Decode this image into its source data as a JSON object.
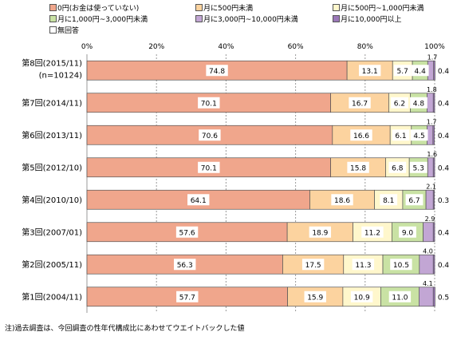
{
  "chart_data": {
    "type": "bar",
    "orientation": "horizontal",
    "stacked": true,
    "percent": true,
    "categories": [
      "第8回(2015/11)",
      "第7回(2014/11)",
      "第6回(2013/11)",
      "第5回(2012/10)",
      "第4回(2010/10)",
      "第3回(2007/01)",
      "第2回(2005/11)",
      "第1回(2004/11)"
    ],
    "category_sublabels": [
      "(n=10124)",
      "",
      "",
      "",
      "",
      "",
      "",
      ""
    ],
    "series": [
      {
        "name": "0円(お金は使っていない)",
        "color": "#f0a68c",
        "values": [
          74.8,
          70.1,
          70.6,
          70.1,
          64.1,
          57.6,
          56.3,
          57.7
        ]
      },
      {
        "name": "月に500円未満",
        "color": "#fcd39f",
        "values": [
          13.1,
          16.7,
          16.6,
          15.8,
          18.6,
          18.9,
          17.5,
          15.9
        ]
      },
      {
        "name": "月に500円~1,000円未満",
        "color": "#fff7cc",
        "values": [
          5.7,
          6.2,
          6.1,
          6.8,
          8.1,
          11.2,
          11.3,
          10.9
        ]
      },
      {
        "name": "月に1,000円~3,000円未満",
        "color": "#c9e2a4",
        "values": [
          4.4,
          4.8,
          4.5,
          5.3,
          6.7,
          9.0,
          10.5,
          11.0
        ]
      },
      {
        "name": "月に3,000円~10,000円未満",
        "color": "#c2a6d4",
        "values": [
          1.7,
          1.8,
          1.7,
          1.6,
          2.1,
          2.9,
          4.0,
          4.1
        ]
      },
      {
        "name": "月に10,000円以上",
        "color": "#9b78b8",
        "values": [
          0.4,
          0.4,
          0.4,
          0.4,
          0.3,
          0.4,
          0.4,
          0.5
        ]
      },
      {
        "name": "無回答",
        "color": "#ffffff",
        "values": [
          0,
          0,
          0,
          0,
          0,
          0,
          0,
          0
        ]
      }
    ],
    "xlim": [
      0,
      100
    ],
    "xticks": [
      "0%",
      "20%",
      "40%",
      "60%",
      "80%",
      "100%"
    ],
    "legend_position": "top",
    "grid": true,
    "note": "注)過去調査は、今回調査の性年代構成比にあわせてウエイトバックした値"
  }
}
